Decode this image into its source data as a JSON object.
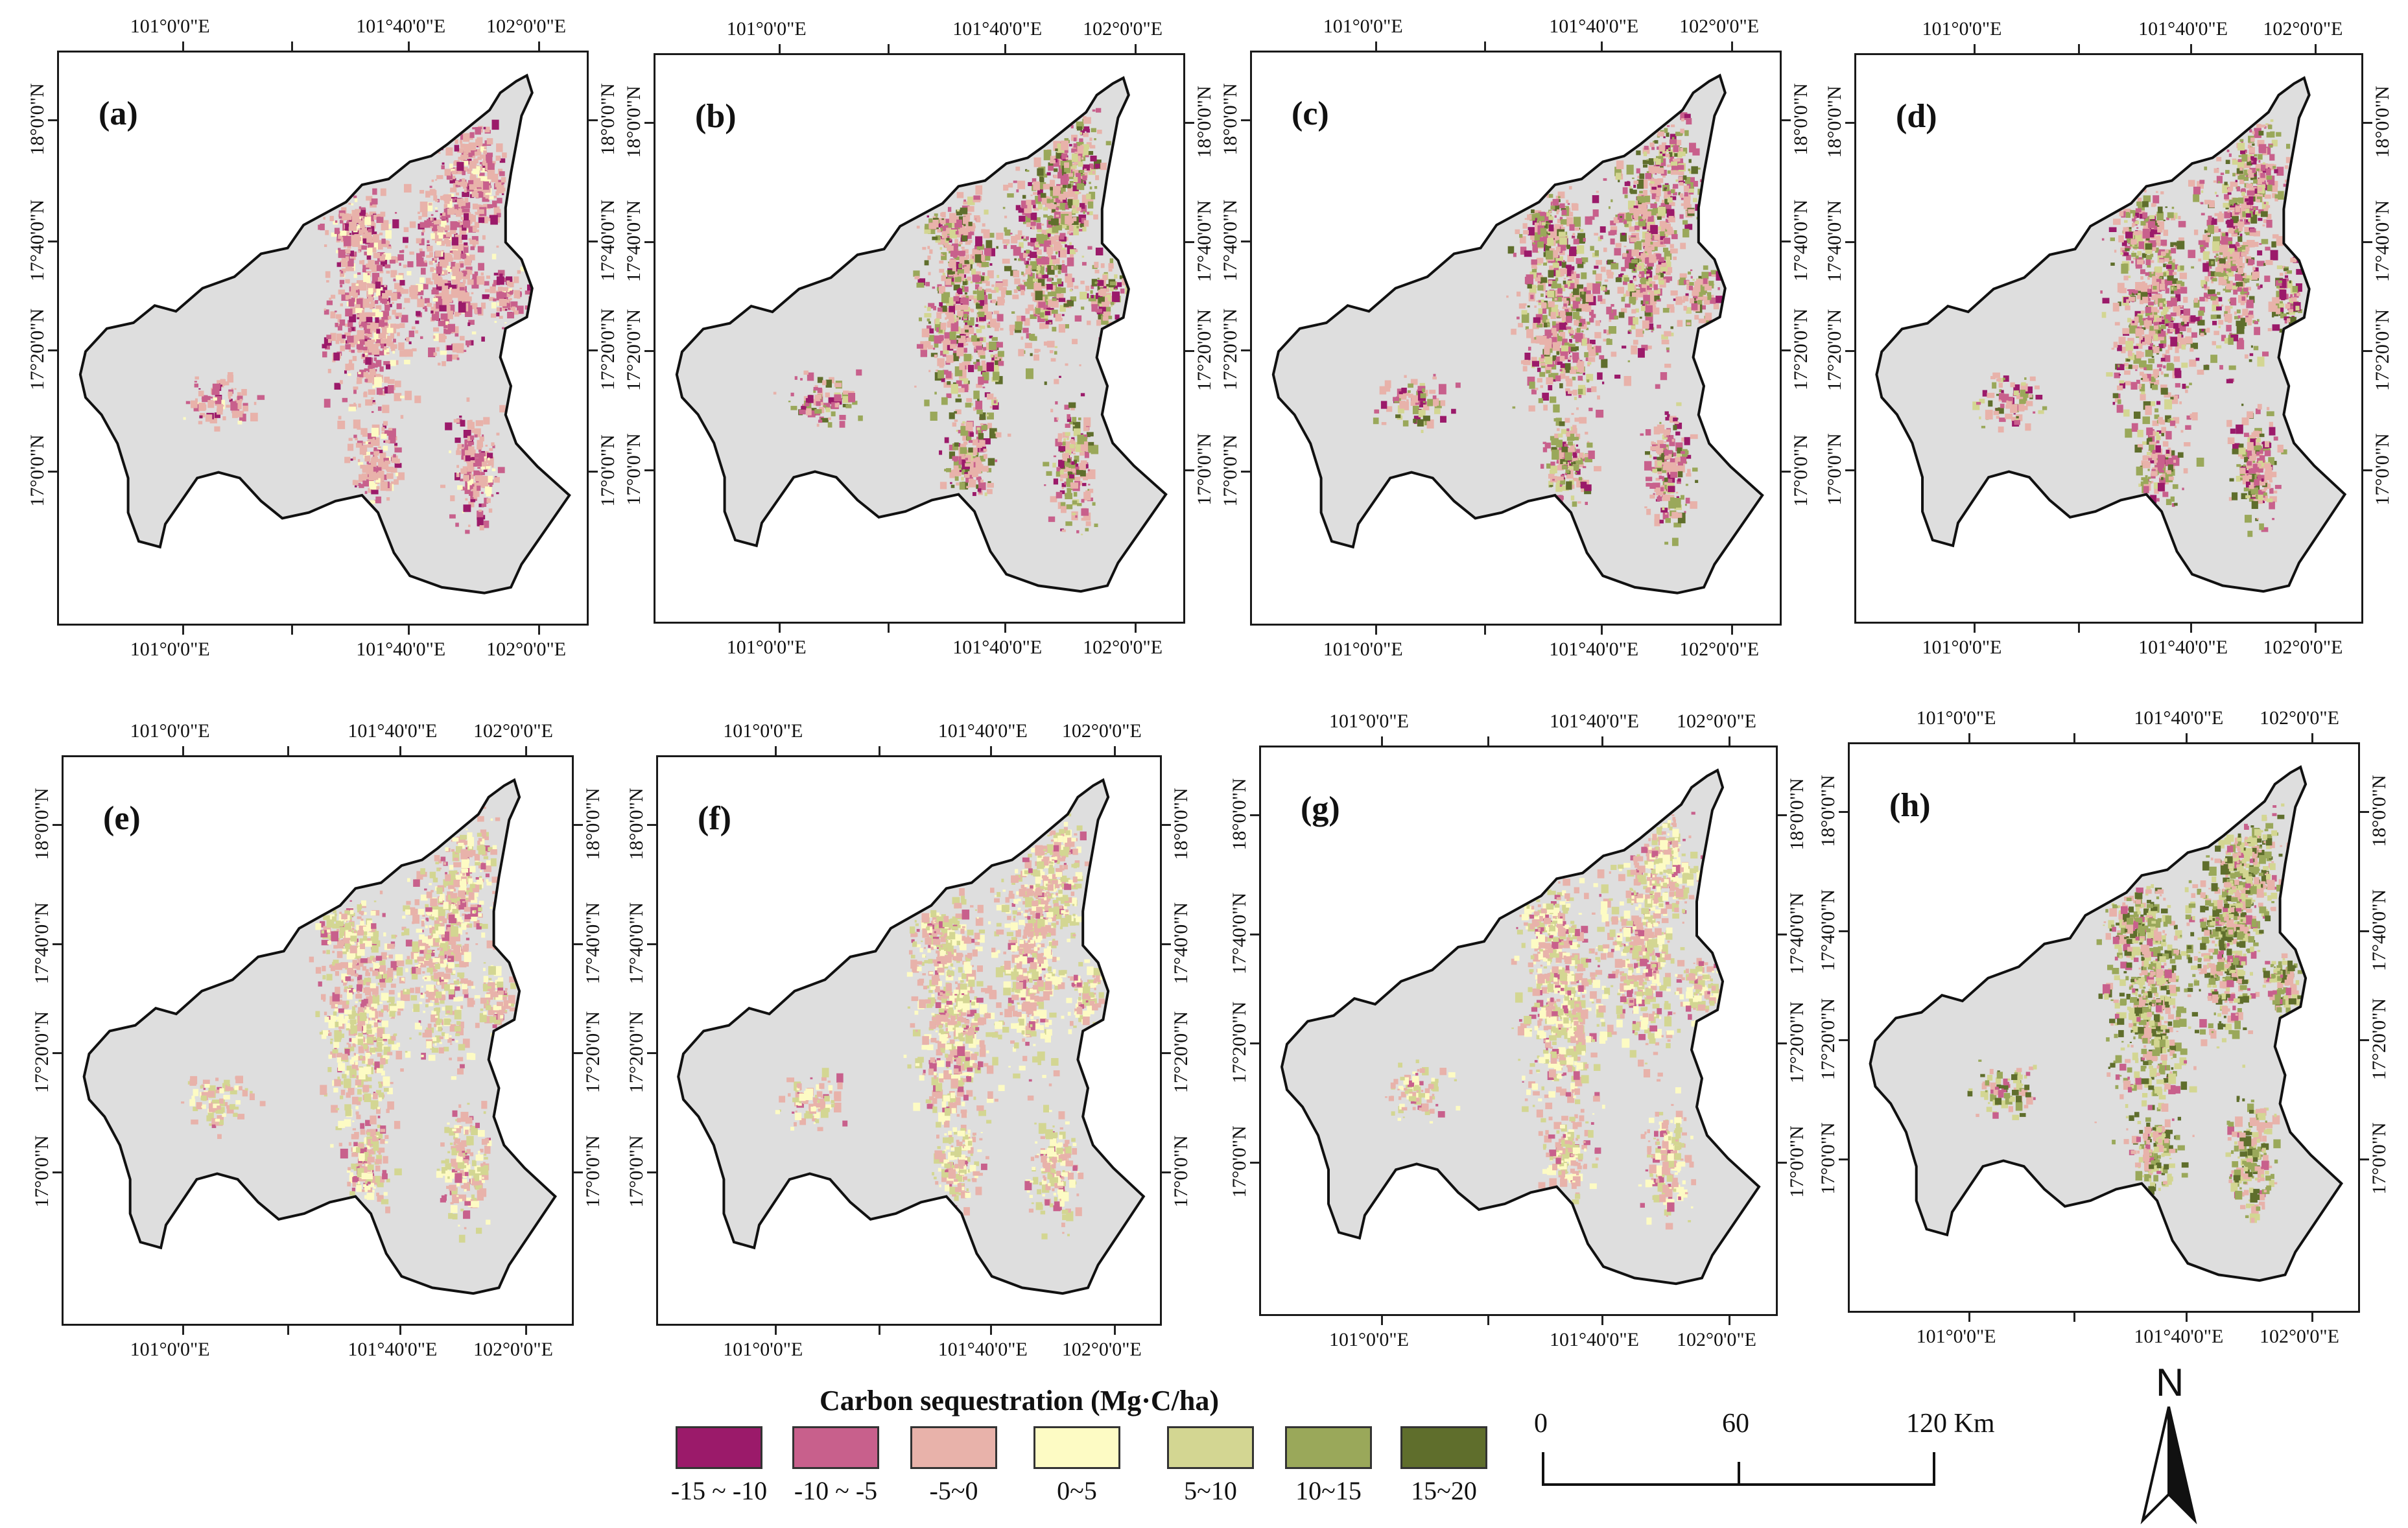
{
  "figure": {
    "panels": [
      {
        "label": "(a)",
        "style": "loss"
      },
      {
        "label": "(b)",
        "style": "mixed"
      },
      {
        "label": "(c)",
        "style": "mixed"
      },
      {
        "label": "(d)",
        "style": "mixed"
      },
      {
        "label": "(e)",
        "style": "light"
      },
      {
        "label": "(f)",
        "style": "light"
      },
      {
        "label": "(g)",
        "style": "light"
      },
      {
        "label": "(h)",
        "style": "gain"
      }
    ],
    "axes": {
      "longitude_labels": [
        "101°0'0\"E",
        "101°40'0\"E",
        "102°0'0\"E"
      ],
      "latitude_labels": [
        "17°0'0\"N",
        "17°20'0\"N",
        "17°40'0\"N",
        "18°0'0\"N"
      ]
    }
  },
  "legend": {
    "title": "Carbon sequestration (Mg·C/ha)",
    "classes": [
      {
        "label": "-15 ~ -10",
        "color": "#9b1a6a"
      },
      {
        "label": "-10 ~ -5",
        "color": "#c8608c"
      },
      {
        "label": "-5~0",
        "color": "#e8b2aa"
      },
      {
        "label": "0~5",
        "color": "#fdfbc4"
      },
      {
        "label": "5~10",
        "color": "#d3d692"
      },
      {
        "label": "10~15",
        "color": "#9aa85a"
      },
      {
        "label": "15~20",
        "color": "#5f6e2c"
      }
    ]
  },
  "scale_bar": {
    "labels": [
      "0",
      "60",
      "120 Km"
    ]
  },
  "north_arrow": {
    "label": "N"
  },
  "colors": {
    "background_map": "#dedede",
    "outline": "#111111"
  }
}
